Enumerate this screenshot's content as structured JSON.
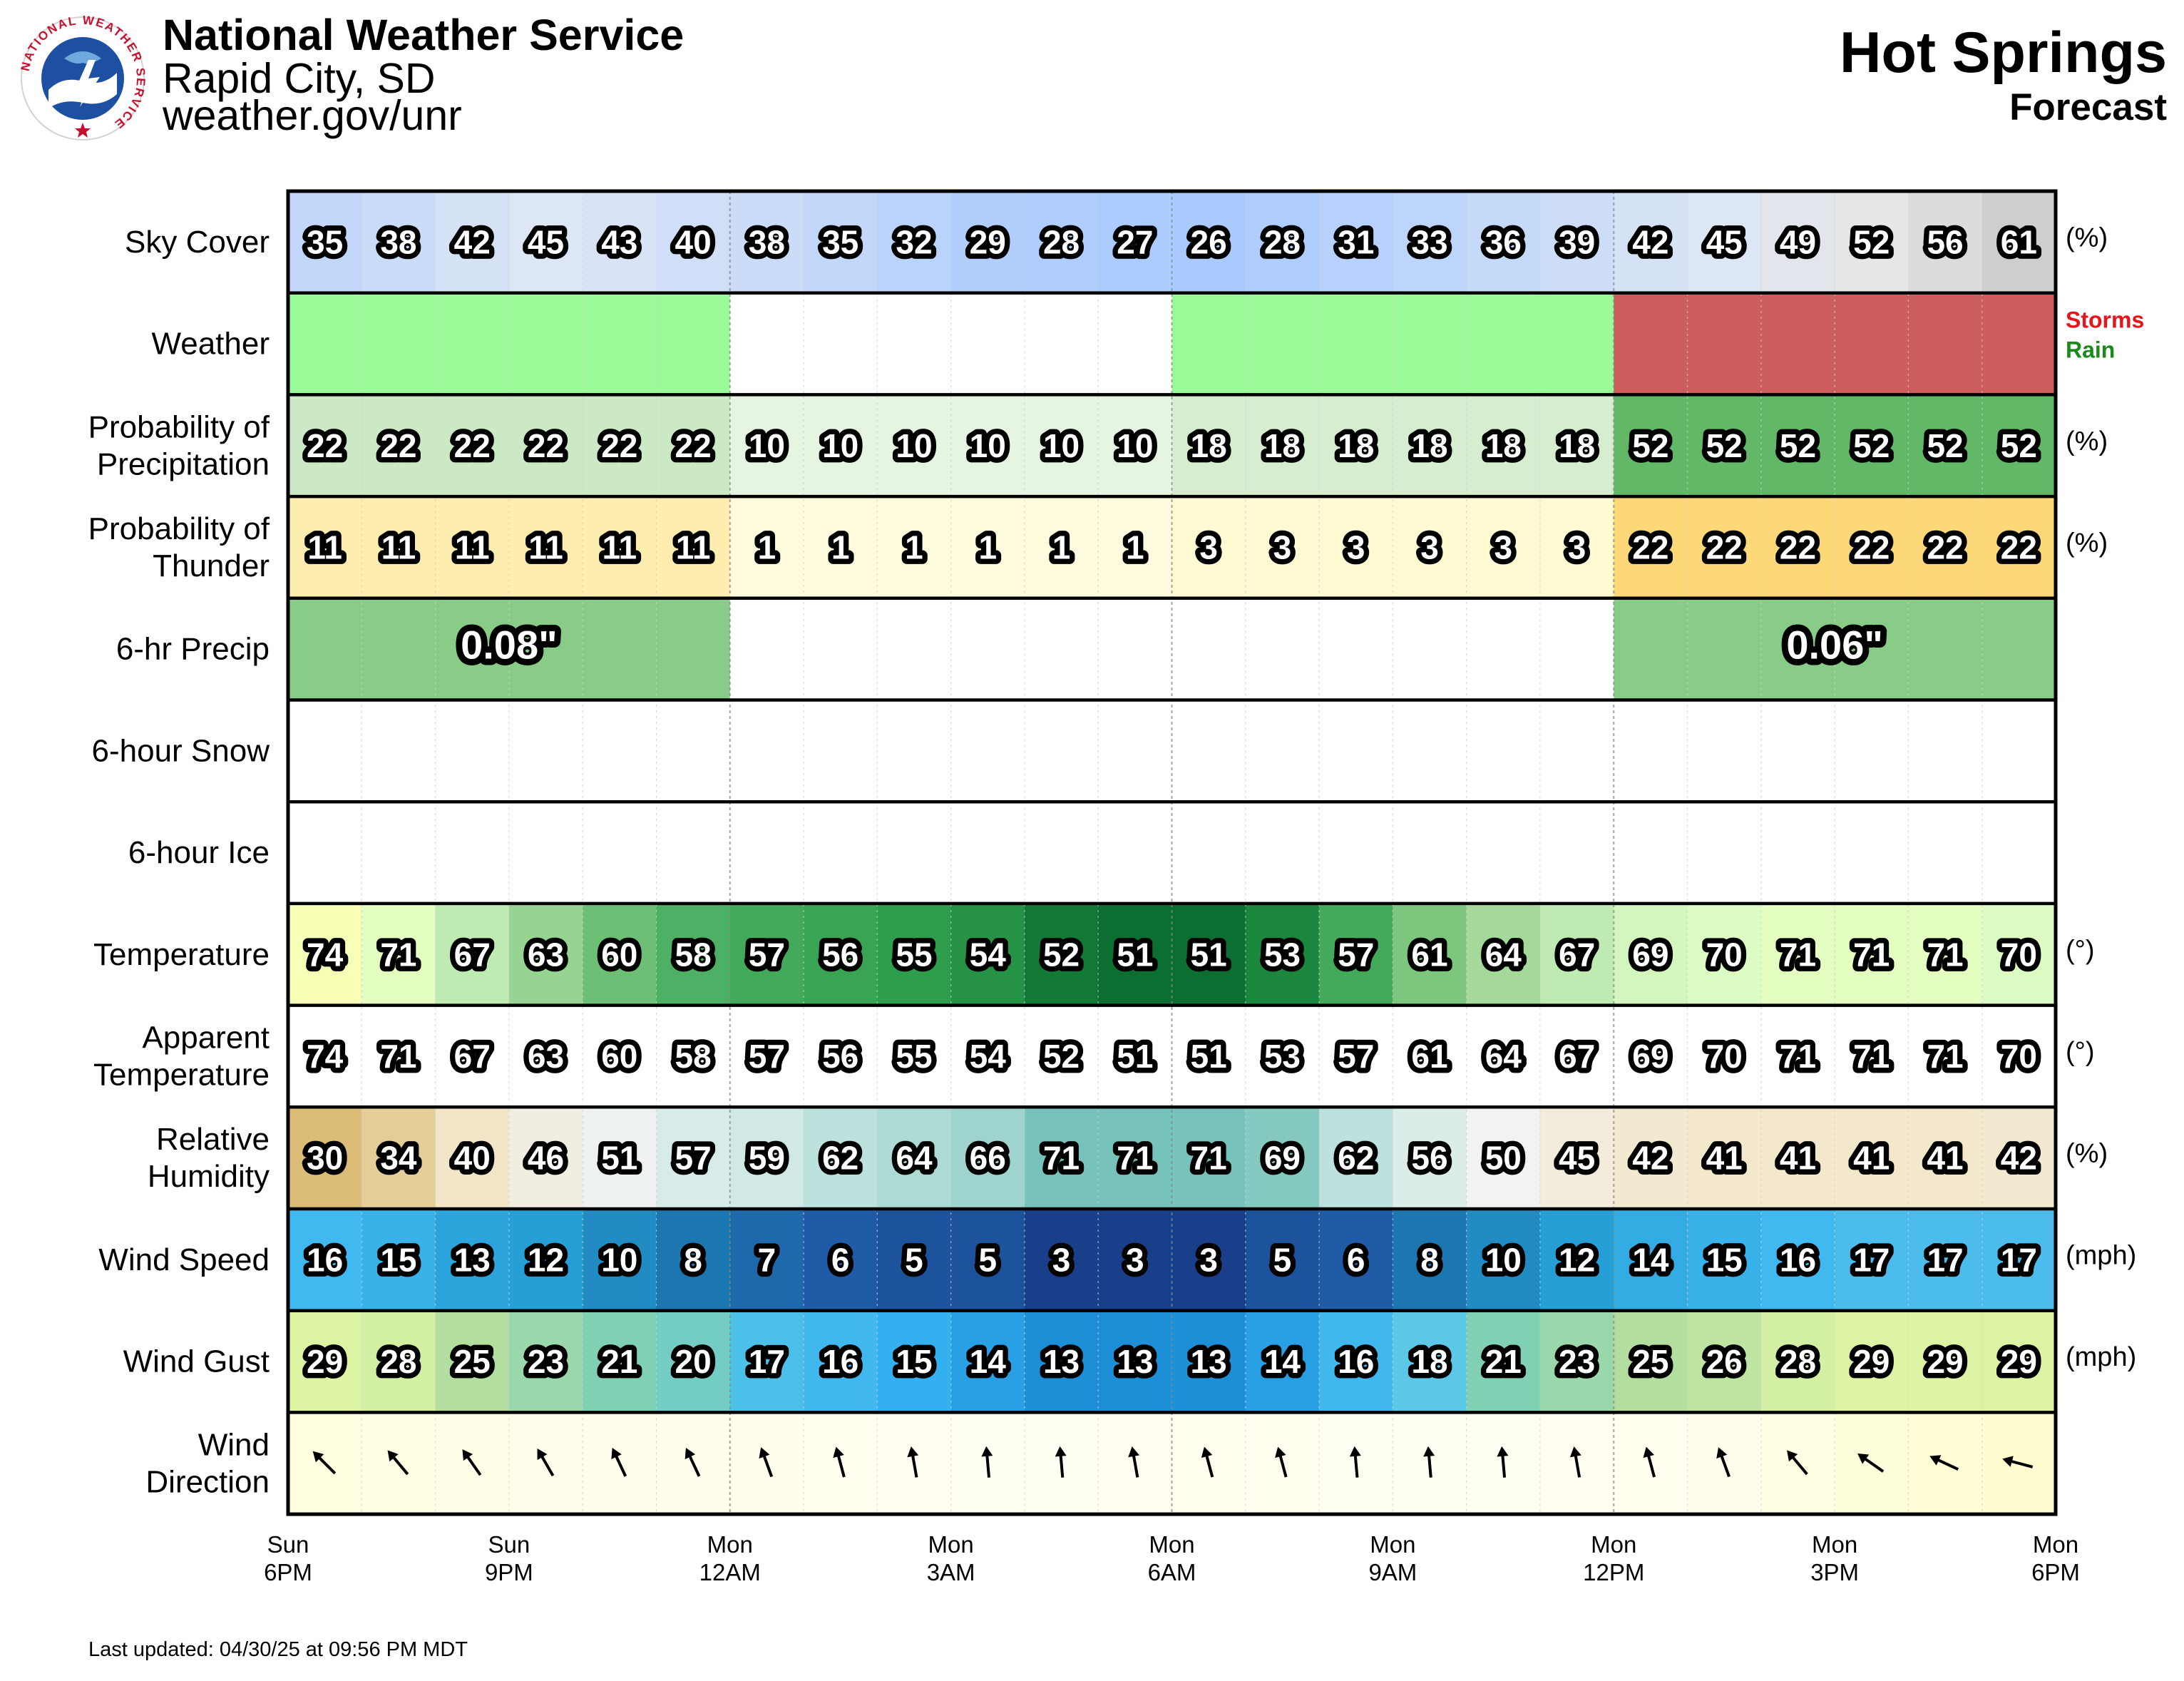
{
  "header": {
    "org": "National Weather Service",
    "office": "Rapid City, SD",
    "url": "weather.gov/unr",
    "station": "Hot Springs",
    "subtitle": "Forecast",
    "logo_icon": "nws-logo-icon",
    "logo_text": "NATIONAL WEATHER SERVICE"
  },
  "footer": {
    "updated": "Last updated: 04/30/25 at 09:56 PM MDT"
  },
  "chart_data": {
    "type": "heatmap",
    "hours": 24,
    "time_axis": [
      {
        "day": "Sun",
        "time": "6PM"
      },
      {
        "day": "Sun",
        "time": "9PM"
      },
      {
        "day": "Mon",
        "time": "12AM"
      },
      {
        "day": "Mon",
        "time": "3AM"
      },
      {
        "day": "Mon",
        "time": "6AM"
      },
      {
        "day": "Mon",
        "time": "9AM"
      },
      {
        "day": "Mon",
        "time": "12PM"
      },
      {
        "day": "Mon",
        "time": "3PM"
      },
      {
        "day": "Mon",
        "time": "6PM"
      }
    ],
    "rows": [
      {
        "key": "sky",
        "label": [
          "Sky Cover"
        ],
        "unit": "(%)",
        "values": [
          35,
          38,
          42,
          45,
          43,
          40,
          38,
          35,
          32,
          29,
          28,
          27,
          26,
          28,
          31,
          33,
          36,
          39,
          42,
          45,
          49,
          52,
          56,
          61
        ]
      },
      {
        "key": "weather",
        "label": [
          "Weather"
        ],
        "type": "weather",
        "values": [
          "Rain",
          "Rain",
          "Rain",
          "Rain",
          "Rain",
          "Rain",
          "",
          "",
          "",
          "",
          "",
          "",
          "Rain",
          "Rain",
          "Rain",
          "Rain",
          "Rain",
          "Rain",
          "Storms",
          "Storms",
          "Storms",
          "Storms",
          "Storms",
          "Storms"
        ],
        "legend": [
          {
            "label": "Storms",
            "color": "#e8141c"
          },
          {
            "label": "Rain",
            "color": "#1a8a1a"
          }
        ]
      },
      {
        "key": "pop",
        "label": [
          "Probability of",
          "Precipitation"
        ],
        "unit": "(%)",
        "values": [
          22,
          22,
          22,
          22,
          22,
          22,
          10,
          10,
          10,
          10,
          10,
          10,
          18,
          18,
          18,
          18,
          18,
          18,
          52,
          52,
          52,
          52,
          52,
          52
        ]
      },
      {
        "key": "thunder",
        "label": [
          "Probability of",
          "Thunder"
        ],
        "unit": "(%)",
        "values": [
          11,
          11,
          11,
          11,
          11,
          11,
          1,
          1,
          1,
          1,
          1,
          1,
          3,
          3,
          3,
          3,
          3,
          3,
          22,
          22,
          22,
          22,
          22,
          22
        ]
      },
      {
        "key": "qpf",
        "label": [
          "6-hr Precip"
        ],
        "type": "block",
        "blocks": [
          "0.08\"",
          "",
          "",
          "0.06\""
        ]
      },
      {
        "key": "snow",
        "label": [
          "6-hour Snow"
        ],
        "type": "block",
        "blocks": [
          "",
          "",
          "",
          ""
        ]
      },
      {
        "key": "ice",
        "label": [
          "6-hour Ice"
        ],
        "type": "block",
        "blocks": [
          "",
          "",
          "",
          ""
        ]
      },
      {
        "key": "temp",
        "label": [
          "Temperature"
        ],
        "unit": "(°)",
        "values": [
          74,
          71,
          67,
          63,
          60,
          58,
          57,
          56,
          55,
          54,
          52,
          51,
          51,
          53,
          57,
          61,
          64,
          67,
          69,
          70,
          71,
          71,
          71,
          70
        ]
      },
      {
        "key": "apparent",
        "label": [
          "Apparent",
          "Temperature"
        ],
        "unit": "(°)",
        "values": [
          74,
          71,
          67,
          63,
          60,
          58,
          57,
          56,
          55,
          54,
          52,
          51,
          51,
          53,
          57,
          61,
          64,
          67,
          69,
          70,
          71,
          71,
          71,
          70
        ]
      },
      {
        "key": "rh",
        "label": [
          "Relative",
          "Humidity"
        ],
        "unit": "(%)",
        "values": [
          30,
          34,
          40,
          46,
          51,
          57,
          59,
          62,
          64,
          66,
          71,
          71,
          71,
          69,
          62,
          56,
          50,
          45,
          42,
          41,
          41,
          41,
          41,
          42
        ]
      },
      {
        "key": "wspd",
        "label": [
          "Wind Speed"
        ],
        "unit": "(mph)",
        "values": [
          16,
          15,
          13,
          12,
          10,
          8,
          7,
          6,
          5,
          5,
          3,
          3,
          3,
          5,
          6,
          8,
          10,
          12,
          14,
          15,
          16,
          17,
          17,
          17
        ]
      },
      {
        "key": "gust",
        "label": [
          "Wind Gust"
        ],
        "unit": "(mph)",
        "values": [
          29,
          28,
          25,
          23,
          21,
          20,
          17,
          16,
          15,
          14,
          13,
          13,
          13,
          14,
          16,
          18,
          21,
          23,
          25,
          26,
          28,
          29,
          29,
          29
        ]
      },
      {
        "key": "wdir",
        "label": [
          "Wind",
          "Direction"
        ],
        "type": "arrows",
        "values": [
          315,
          320,
          325,
          330,
          335,
          335,
          340,
          345,
          350,
          355,
          355,
          350,
          345,
          345,
          355,
          355,
          355,
          350,
          345,
          340,
          320,
          305,
          295,
          285
        ]
      }
    ]
  }
}
